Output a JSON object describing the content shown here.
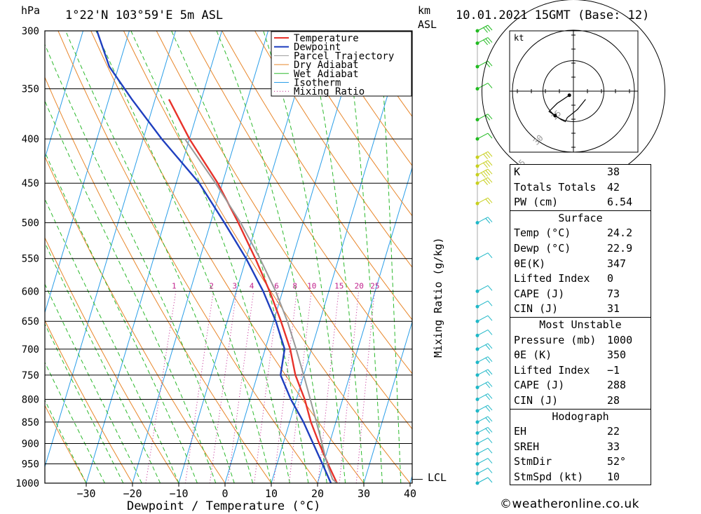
{
  "header": {
    "location": "1°22'N  103°59'E  5m  ASL",
    "units_left": "hPa",
    "units_km": "km",
    "units_asl": "ASL",
    "datetime": "10.01.2021  15GMT  (Base: 12)"
  },
  "chart_data": {
    "type": "skew-t",
    "title": "1°22'N 103°59'E 5m ASL",
    "xlabel": "Dewpoint / Temperature (°C)",
    "ylabel": "hPa",
    "y2label": "Mixing Ratio (g/kg)",
    "pressure_levels": [
      300,
      350,
      400,
      450,
      500,
      550,
      600,
      650,
      700,
      750,
      800,
      850,
      900,
      950,
      1000
    ],
    "temperature_ticks": [
      -30,
      -20,
      -10,
      0,
      10,
      20,
      30,
      40
    ],
    "mixing_ratio_labels": [
      "1",
      "2",
      "3",
      "4",
      "6",
      "8",
      "10",
      "15",
      "20",
      "25"
    ],
    "mixing_ratio_values": [
      1,
      2,
      3,
      4,
      6,
      8,
      10,
      15,
      20,
      25
    ],
    "lcl_label": "LCL",
    "lcl_pressure": 990,
    "legend": [
      "Temperature",
      "Dewpoint",
      "Parcel Trajectory",
      "Dry Adiabat",
      "Wet Adiabat",
      "Isotherm",
      "Mixing Ratio"
    ],
    "series": [
      {
        "name": "Temperature",
        "color": "#e8322a",
        "pressure": [
          1000,
          950,
          900,
          850,
          800,
          750,
          700,
          650,
          600,
          550,
          500,
          450,
          400,
          360
        ],
        "values": [
          24.2,
          21.0,
          17.8,
          14.6,
          11.8,
          8.2,
          5.4,
          1.6,
          -2.8,
          -8.0,
          -14.0,
          -21.0,
          -30.0,
          -37.0
        ]
      },
      {
        "name": "Dewpoint",
        "color": "#1f3fbf",
        "pressure": [
          1000,
          950,
          900,
          850,
          800,
          750,
          700,
          650,
          600,
          550,
          500,
          450,
          400,
          360,
          330,
          300
        ],
        "values": [
          22.9,
          19.8,
          16.5,
          13.0,
          8.8,
          5.0,
          4.2,
          0.5,
          -4.2,
          -10.0,
          -17.0,
          -25.0,
          -36.0,
          -45.0,
          -52.0,
          -57.0
        ]
      },
      {
        "name": "Parcel Trajectory",
        "color": "#999999",
        "pressure": [
          1000,
          990,
          950,
          900,
          850,
          800,
          750,
          700,
          650,
          600,
          550,
          500,
          450,
          400
        ],
        "values": [
          24.2,
          23.0,
          20.8,
          18.4,
          15.8,
          13.0,
          10.0,
          6.7,
          3.0,
          -1.5,
          -7.0,
          -13.5,
          -21.5,
          -31.0
        ]
      }
    ]
  },
  "wind_barbs": {
    "levels": [
      1000,
      975,
      950,
      925,
      900,
      875,
      850,
      825,
      800,
      775,
      750,
      725,
      700,
      675,
      650,
      625,
      600,
      550,
      500,
      475,
      450,
      440,
      430,
      420,
      400,
      380,
      350,
      330,
      310,
      300
    ],
    "speed_kt": [
      5,
      8,
      10,
      10,
      12,
      15,
      15,
      18,
      20,
      20,
      20,
      18,
      15,
      12,
      10,
      12,
      5,
      5,
      15,
      20,
      30,
      35,
      30,
      25,
      10,
      15,
      10,
      20,
      25,
      30
    ],
    "color_low": "#20b8c8",
    "color_mid": "#22bb22",
    "color_high": "#c8d020"
  },
  "hodograph": {
    "unit_label": "kt",
    "ring_labels": [
      "15",
      "30",
      "45"
    ],
    "u": [
      -2,
      -5,
      -8,
      -10,
      -12,
      -9,
      -6,
      -4,
      -3,
      2,
      6
    ],
    "v": [
      -2,
      -4,
      -6,
      -8,
      -10,
      -12,
      -14,
      -15,
      -13,
      -9,
      -4
    ]
  },
  "indices": {
    "top": [
      {
        "label": "K",
        "value": "38"
      },
      {
        "label": "Totals Totals",
        "value": "42"
      },
      {
        "label": "PW (cm)",
        "value": "6.54"
      }
    ],
    "surface_title": "Surface",
    "surface": [
      {
        "label": "Temp (°C)",
        "value": "24.2"
      },
      {
        "label": "Dewp (°C)",
        "value": "22.9"
      },
      {
        "label": "θE(K)",
        "value": "347"
      },
      {
        "label": "Lifted Index",
        "value": "0"
      },
      {
        "label": "CAPE (J)",
        "value": "73"
      },
      {
        "label": "CIN (J)",
        "value": "31"
      }
    ],
    "unstable_title": "Most Unstable",
    "unstable": [
      {
        "label": "Pressure (mb)",
        "value": "1000"
      },
      {
        "label": "θE (K)",
        "value": "350"
      },
      {
        "label": "Lifted Index",
        "value": "−1"
      },
      {
        "label": "CAPE (J)",
        "value": "288"
      },
      {
        "label": "CIN (J)",
        "value": "28"
      }
    ],
    "hodo_title": "Hodograph",
    "hodo": [
      {
        "label": "EH",
        "value": "22"
      },
      {
        "label": "SREH",
        "value": "33"
      },
      {
        "label": "StmDir",
        "value": "52°"
      },
      {
        "label": "StmSpd (kt)",
        "value": "10"
      }
    ]
  },
  "footer": {
    "credit": "©weatheronline.co.uk"
  },
  "colors": {
    "temperature": "#e8322a",
    "dewpoint": "#1f3fbf",
    "parcel": "#999999",
    "dry_adiabat": "#e8862a",
    "wet_adiabat": "#2db92d",
    "isotherm": "#2a9ee8",
    "mixing_ratio": "#c0208c"
  }
}
